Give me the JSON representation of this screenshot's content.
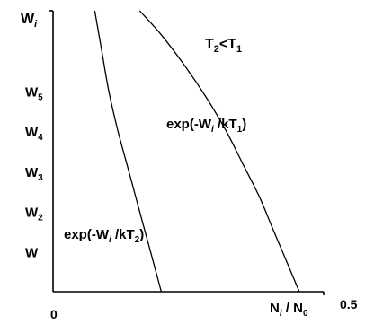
{
  "chart_data": {
    "type": "line",
    "title": "",
    "ylabel": {
      "base": "W",
      "sub": "i",
      "italic_sub": true
    },
    "xlabel": {
      "p1": "N",
      "p1_sub": "i",
      "sep": " / ",
      "p2": "N",
      "p2_sub": "0",
      "italic_sub": true
    },
    "x_ticks": [
      {
        "label": "0",
        "value": 0
      },
      {
        "label": "0.5",
        "value": 0.5
      }
    ],
    "xlim": [
      0,
      0.5
    ],
    "y_ticks": [
      {
        "base": "W",
        "sub": "",
        "level": 1
      },
      {
        "base": "W",
        "sub": "2",
        "level": 2
      },
      {
        "base": "W",
        "sub": "3",
        "level": 3
      },
      {
        "base": "W",
        "sub": "4",
        "level": 4
      },
      {
        "base": "W",
        "sub": "5",
        "level": 5
      }
    ],
    "ylim": [
      0,
      7
    ],
    "legend_note": {
      "a": "T",
      "a_sub": "2",
      "op": "<",
      "b": "T",
      "b_sub": "1"
    },
    "series": [
      {
        "label": {
          "pre": "exp(-W",
          "sub": "i",
          "mid": " /kT",
          "sub2": "1",
          "post": ")"
        },
        "points": [
          [
            0.16,
            7.0
          ],
          [
            0.2,
            6.4
          ],
          [
            0.245,
            5.6
          ],
          [
            0.285,
            4.8
          ],
          [
            0.32,
            4.0
          ],
          [
            0.35,
            3.2
          ],
          [
            0.38,
            2.4
          ],
          [
            0.405,
            1.6
          ],
          [
            0.43,
            0.8
          ],
          [
            0.455,
            0.0
          ]
        ]
      },
      {
        "label": {
          "pre": "exp(-W",
          "sub": "i",
          "mid": " /kT",
          "sub2": "2",
          "post": ")"
        },
        "points": [
          [
            0.077,
            7.0
          ],
          [
            0.09,
            6.0
          ],
          [
            0.103,
            5.0
          ],
          [
            0.12,
            4.0
          ],
          [
            0.14,
            3.0
          ],
          [
            0.16,
            2.0
          ],
          [
            0.18,
            1.0
          ],
          [
            0.2,
            0.0
          ]
        ]
      }
    ]
  }
}
